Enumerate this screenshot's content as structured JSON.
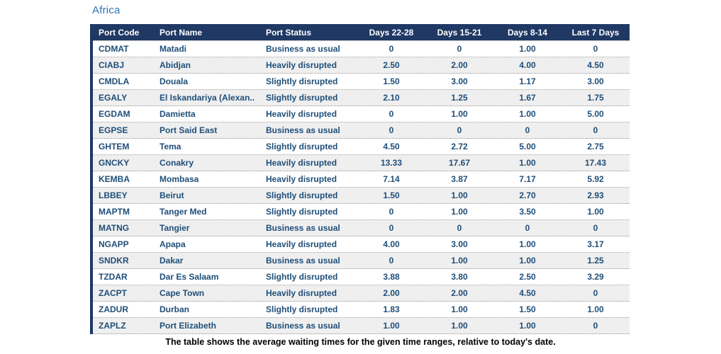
{
  "page": {
    "title": "Africa",
    "caption": "The table shows the average waiting times for the given time ranges, relative to today's date."
  },
  "colors": {
    "header_bg": "#1F3864",
    "header_text": "#FFFFFF",
    "body_text": "#1F4E79",
    "title_text": "#2E74B5",
    "row_alt_bg": "#EFEFEF",
    "left_border": "#1F3864"
  },
  "chart_data": {
    "type": "table",
    "title": "Africa",
    "caption": "The table shows the average waiting times for the given time ranges, relative to today's date.",
    "columns": [
      "Port Code",
      "Port Name",
      "Port Status",
      "Days 22-28",
      "Days 15-21",
      "Days 8-14",
      "Last 7 Days"
    ],
    "rows": [
      [
        "CDMAT",
        "Matadi",
        "Business as usual",
        "0",
        "0",
        "1.00",
        "0"
      ],
      [
        "CIABJ",
        "Abidjan",
        "Heavily disrupted",
        "2.50",
        "2.00",
        "4.00",
        "4.50"
      ],
      [
        "CMDLA",
        "Douala",
        "Slightly disrupted",
        "1.50",
        "3.00",
        "1.17",
        "3.00"
      ],
      [
        "EGALY",
        "El Iskandariya (Alexan..",
        "Slightly disrupted",
        "2.10",
        "1.25",
        "1.67",
        "1.75"
      ],
      [
        "EGDAM",
        "Damietta",
        "Heavily disrupted",
        "0",
        "1.00",
        "1.00",
        "5.00"
      ],
      [
        "EGPSE",
        "Port Said East",
        "Business as usual",
        "0",
        "0",
        "0",
        "0"
      ],
      [
        "GHTEM",
        "Tema",
        "Slightly disrupted",
        "4.50",
        "2.72",
        "5.00",
        "2.75"
      ],
      [
        "GNCKY",
        "Conakry",
        "Heavily disrupted",
        "13.33",
        "17.67",
        "1.00",
        "17.43"
      ],
      [
        "KEMBA",
        "Mombasa",
        "Heavily disrupted",
        "7.14",
        "3.87",
        "7.17",
        "5.92"
      ],
      [
        "LBBEY",
        "Beirut",
        "Slightly disrupted",
        "1.50",
        "1.00",
        "2.70",
        "2.93"
      ],
      [
        "MAPTM",
        "Tanger Med",
        "Slightly disrupted",
        "0",
        "1.00",
        "3.50",
        "1.00"
      ],
      [
        "MATNG",
        "Tangier",
        "Business as usual",
        "0",
        "0",
        "0",
        "0"
      ],
      [
        "NGAPP",
        "Apapa",
        "Heavily disrupted",
        "4.00",
        "3.00",
        "1.00",
        "3.17"
      ],
      [
        "SNDKR",
        "Dakar",
        "Business as usual",
        "0",
        "1.00",
        "1.00",
        "1.25"
      ],
      [
        "TZDAR",
        "Dar Es Salaam",
        "Slightly disrupted",
        "3.88",
        "3.80",
        "2.50",
        "3.29"
      ],
      [
        "ZACPT",
        "Cape Town",
        "Heavily disrupted",
        "2.00",
        "2.00",
        "4.50",
        "0"
      ],
      [
        "ZADUR",
        "Durban",
        "Slightly disrupted",
        "1.83",
        "1.00",
        "1.50",
        "1.00"
      ],
      [
        "ZAPLZ",
        "Port Elizabeth",
        "Business as usual",
        "1.00",
        "1.00",
        "1.00",
        "0"
      ]
    ]
  }
}
